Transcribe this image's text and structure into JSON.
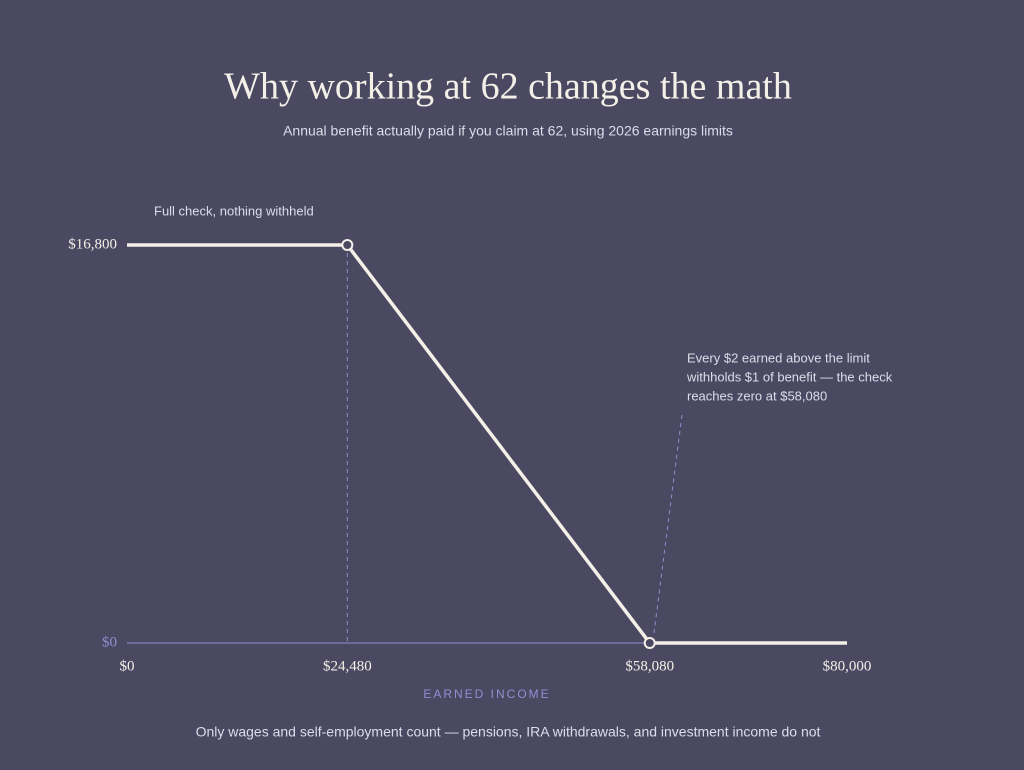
{
  "chart_data": {
    "type": "line",
    "title": "Why working at 62 changes the math",
    "subtitle": "Annual benefit actually paid if you claim at 62, using 2026 earnings limits",
    "x_label": "EARNED INCOME",
    "footnote": "Only wages and self-employment count — pensions, IRA withdrawals, and investment income do not",
    "annotations": [
      "Full check, nothing withheld",
      [
        "Every $2 earned above the limit",
        "withholds $1 of benefit — the check",
        "reaches zero at $58,080"
      ]
    ],
    "x": [
      0,
      24480,
      58080,
      80000
    ],
    "values": [
      16800,
      16800,
      0,
      0
    ],
    "color": "#f4f0e8",
    "xlim": [
      0,
      80000
    ],
    "xticks": [
      {
        "value": 0,
        "label": "$0"
      },
      {
        "value": 24480,
        "label": "$24,480"
      },
      {
        "value": 58080,
        "label": "$58,080"
      },
      {
        "value": 80000,
        "label": "$80,000"
      }
    ],
    "ylim": [
      0,
      16800
    ],
    "yticks": [
      {
        "value": 0,
        "label": "$0"
      },
      {
        "value": 16800,
        "label": "$16,800"
      }
    ]
  }
}
